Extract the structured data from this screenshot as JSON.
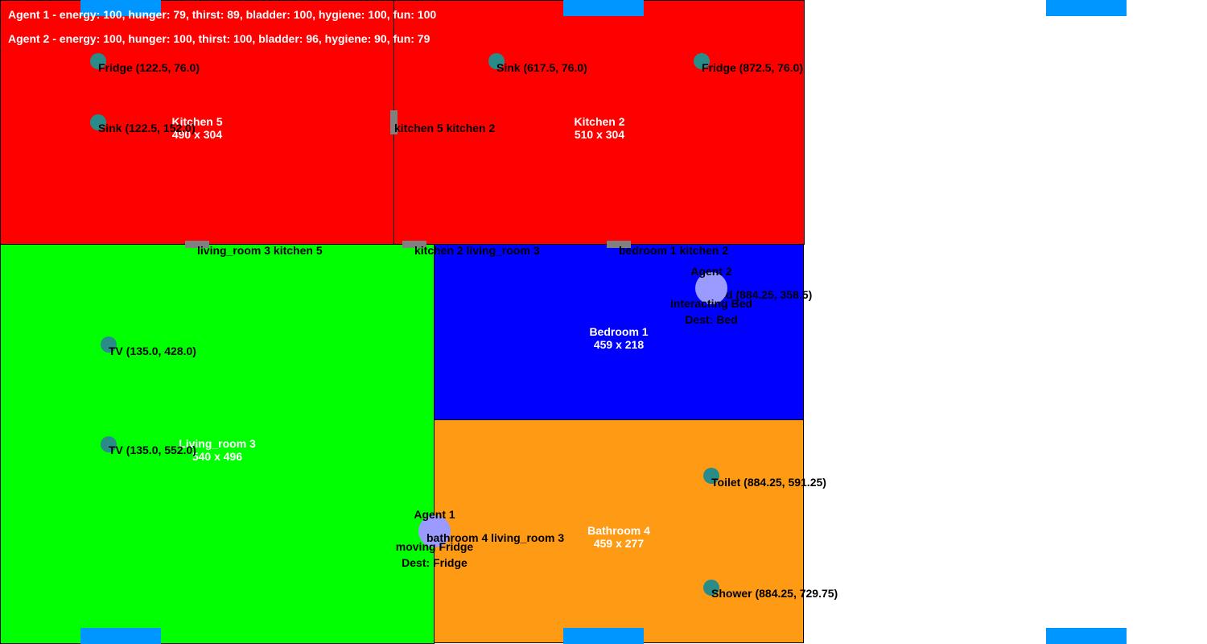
{
  "hud": {
    "agent1_status": "Agent 1 - energy: 100, hunger: 79, thirst: 89, bladder: 100, hygiene: 100, fun: 100",
    "agent2_status": "Agent 2 - energy: 100, hunger: 100, thirst: 100, bladder: 96, hygiene: 90, fun: 79"
  },
  "rooms": {
    "kitchen5": {
      "name": "Kitchen 5",
      "size": "490 x 304",
      "color": "#ff0000"
    },
    "kitchen2": {
      "name": "Kitchen 2",
      "size": "510 x 304",
      "color": "#ff0000"
    },
    "living_room3": {
      "name": "Living_room 3",
      "size": "540 x 496",
      "color": "#00ff00"
    },
    "bedroom1": {
      "name": "Bedroom 1",
      "size": "459 x 218",
      "color": "#0000ff"
    },
    "bathroom4": {
      "name": "Bathroom 4",
      "size": "459 x 277",
      "color": "#ff9a14"
    }
  },
  "doors": {
    "kitchen5_kitchen2": "kitchen 5 kitchen 2",
    "living3_kitchen5": "living_room 3 kitchen 5",
    "kitchen2_living3": "kitchen 2 living_room 3",
    "bedroom1_kitchen2": "bedroom 1 kitchen 2",
    "bathroom4_living3": "bathroom 4 living_room 3"
  },
  "objects": {
    "fridge_k5": "Fridge (122.5, 76.0)",
    "sink_k5": "Sink (122.5, 152.0)",
    "sink_k2": "Sink (617.5, 76.0)",
    "fridge_k2": "Fridge (872.5, 76.0)",
    "bed_b1": "Bed (884.25, 358.5)",
    "tv1": "TV (135.0, 428.0)",
    "tv2": "TV (135.0, 552.0)",
    "toilet": "Toilet (884.25, 591.25)",
    "shower": "Shower (884.25, 729.75)"
  },
  "agents": {
    "agent1": {
      "name": "Agent 1",
      "state": "moving Fridge",
      "dest": "Dest: Fridge"
    },
    "agent2": {
      "name": "Agent 2",
      "state": "interacting Bed",
      "dest": "Dest: Bed"
    }
  },
  "colors": {
    "portal": "#0096ff",
    "door": "#808080",
    "object": "#2a8c88",
    "agent": "#9b9bff"
  }
}
